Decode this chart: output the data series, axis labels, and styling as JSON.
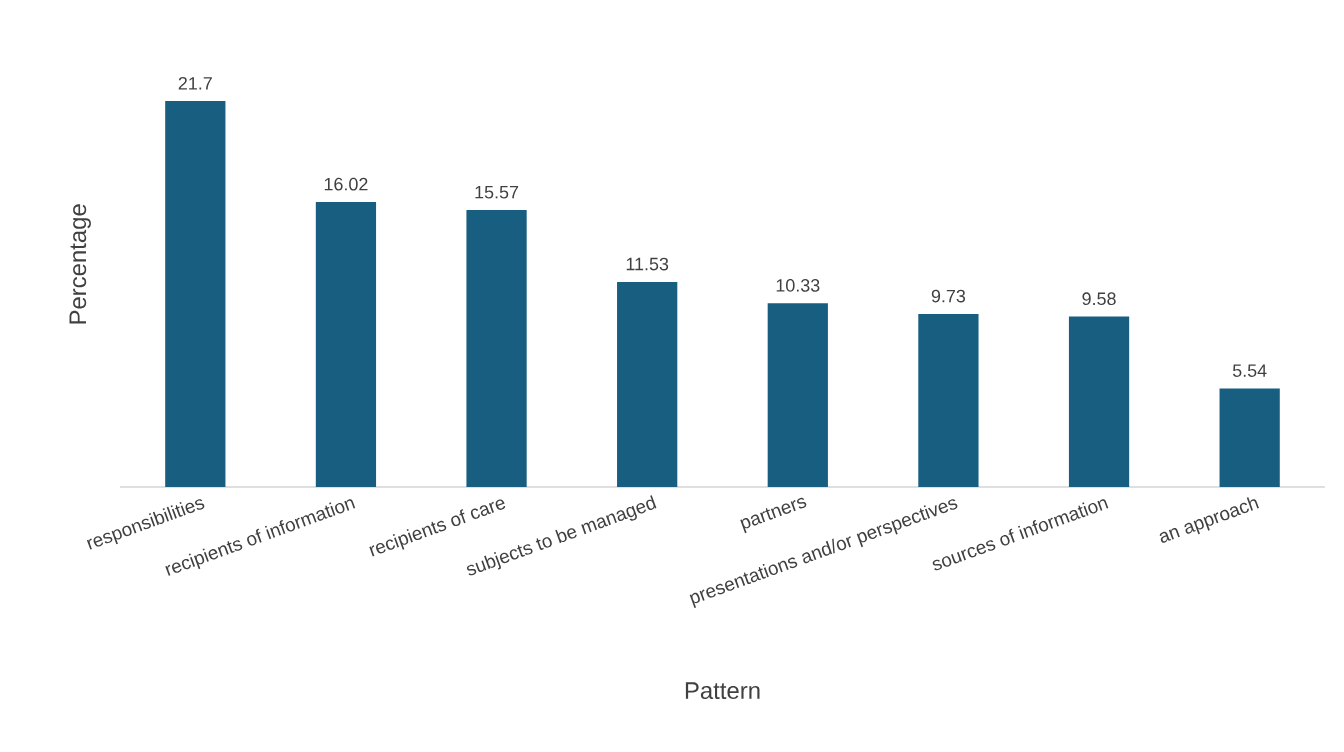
{
  "chart_data": {
    "type": "bar",
    "xlabel": "Pattern",
    "ylabel": "Percentage",
    "categories": [
      "responsibilities",
      "recipients of information",
      "recipients of care",
      "subjects to be managed",
      "partners",
      "presentations and/or perspectives",
      "sources of information",
      "an approach"
    ],
    "values": [
      21.7,
      16.02,
      15.57,
      11.53,
      10.33,
      9.73,
      9.58,
      5.54
    ],
    "color": "#175e81",
    "data_labels": true
  }
}
